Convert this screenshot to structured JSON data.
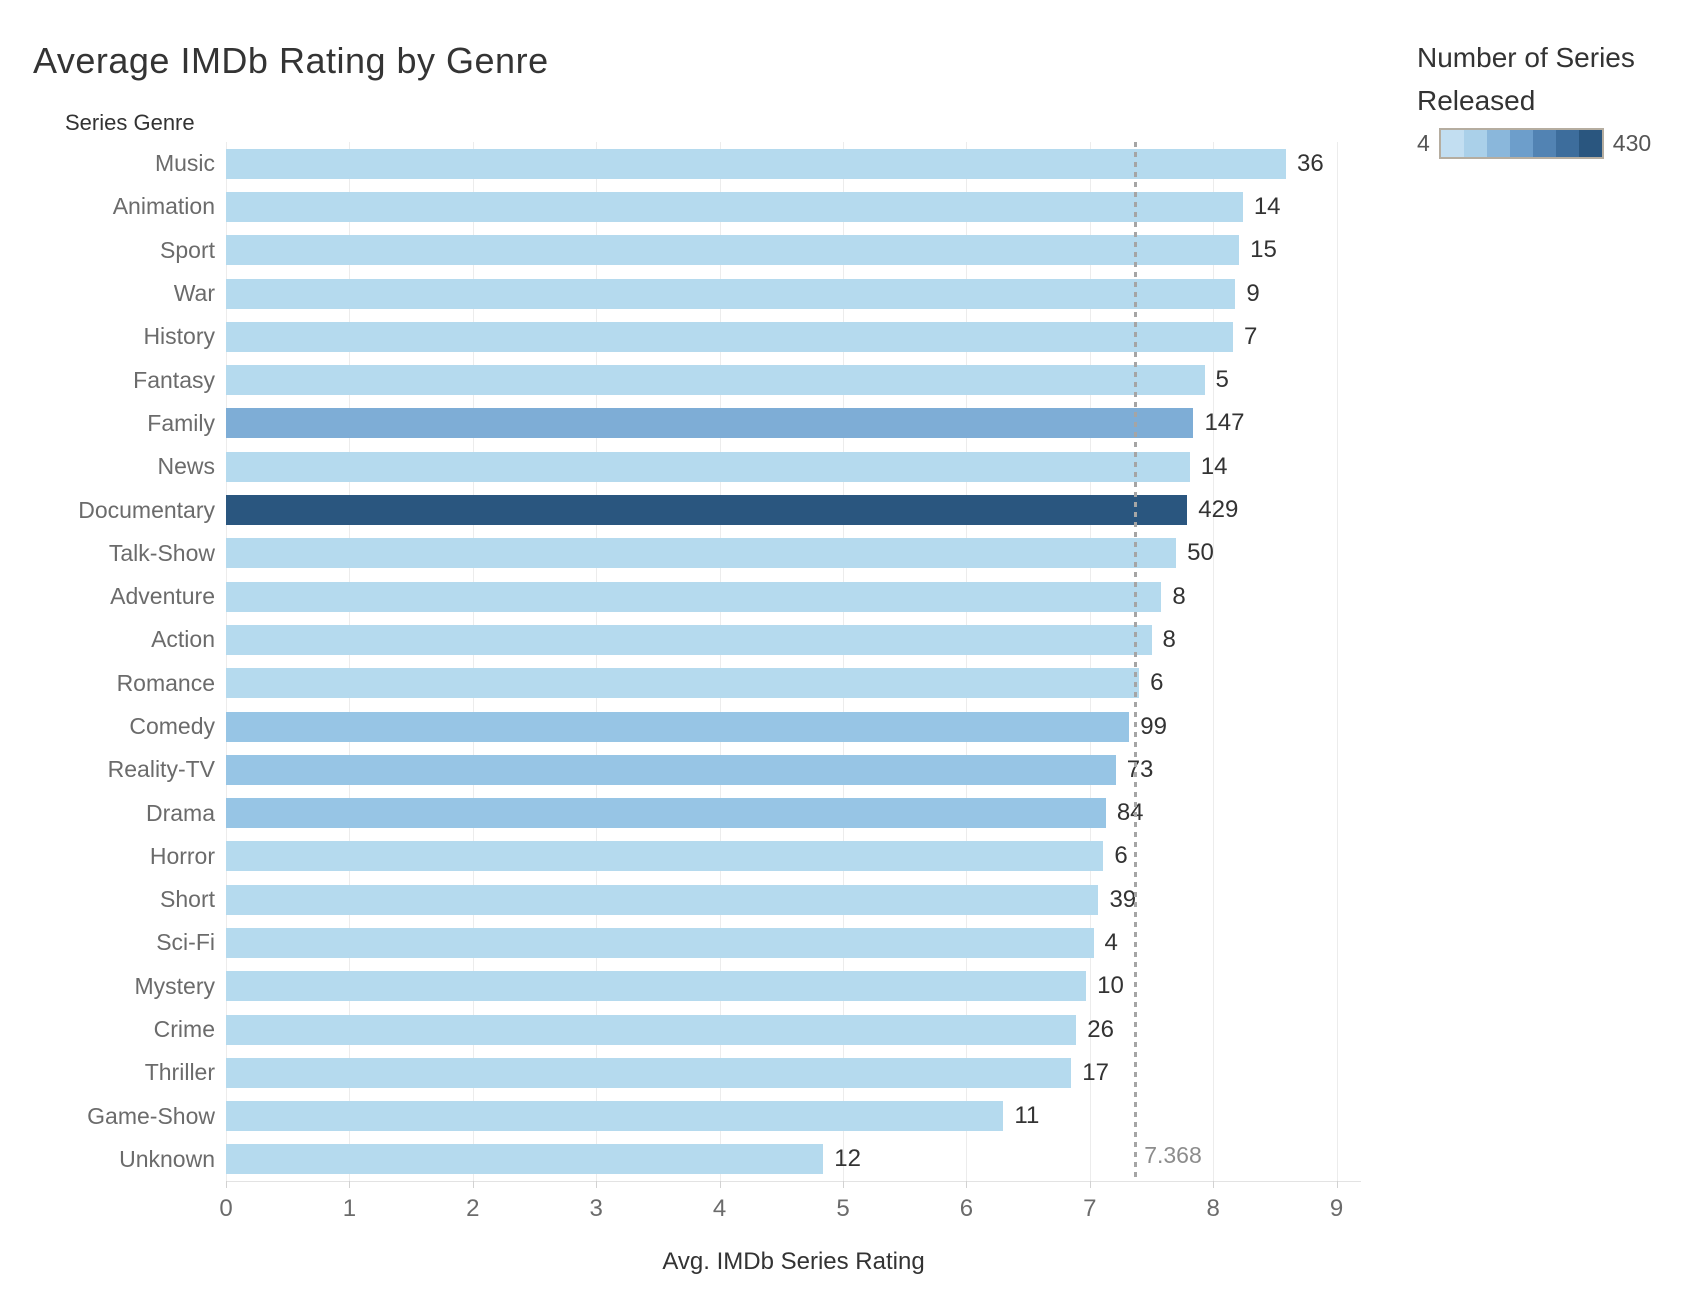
{
  "title": "Average IMDb Rating by Genre",
  "row_header": "Series Genre",
  "legend": {
    "title_line1": "Number of Series",
    "title_line2": "Released",
    "min_label": "4",
    "max_label": "430",
    "ramp_colors": [
      "#c2def1",
      "#aad0e9",
      "#8ab7db",
      "#6d9ecb",
      "#5283b3",
      "#3d6d9c",
      "#2a567f"
    ]
  },
  "colors": {
    "bar_light": "#b5daee",
    "bar_medium_light": "#97c5e5",
    "bar_medium": "#7eadd6",
    "bar_dark": "#2a567f",
    "gridline": "#ececec",
    "reference_line": "#a5a5a5"
  },
  "chart_data": {
    "type": "bar",
    "orientation": "horizontal",
    "title": "Average IMDb Rating by Genre",
    "xlabel": "Avg. IMDb Series Rating",
    "ylabel": "Series Genre",
    "xlim": [
      0,
      9.25
    ],
    "x_ticks": [
      0,
      1,
      2,
      3,
      4,
      5,
      6,
      7,
      8,
      9
    ],
    "grid": true,
    "legend_position": "top-right",
    "color_field": "Number of Series Released",
    "color_domain": [
      4,
      430
    ],
    "reference_line": {
      "value": 7.368,
      "label": "7.368"
    },
    "rows": [
      {
        "genre": "Music",
        "rating": 8.59,
        "count": 36,
        "color": "#b5daee"
      },
      {
        "genre": "Animation",
        "rating": 8.24,
        "count": 14,
        "color": "#b5daee"
      },
      {
        "genre": "Sport",
        "rating": 8.21,
        "count": 15,
        "color": "#b5daee"
      },
      {
        "genre": "War",
        "rating": 8.18,
        "count": 9,
        "color": "#b5daee"
      },
      {
        "genre": "History",
        "rating": 8.16,
        "count": 7,
        "color": "#b5daee"
      },
      {
        "genre": "Fantasy",
        "rating": 7.93,
        "count": 5,
        "color": "#b5daee"
      },
      {
        "genre": "Family",
        "rating": 7.84,
        "count": 147,
        "color": "#7eadd6"
      },
      {
        "genre": "News",
        "rating": 7.81,
        "count": 14,
        "color": "#b5daee"
      },
      {
        "genre": "Documentary",
        "rating": 7.79,
        "count": 429,
        "color": "#2a567f"
      },
      {
        "genre": "Talk-Show",
        "rating": 7.7,
        "count": 50,
        "color": "#b5daee"
      },
      {
        "genre": "Adventure",
        "rating": 7.58,
        "count": 8,
        "color": "#b5daee"
      },
      {
        "genre": "Action",
        "rating": 7.5,
        "count": 8,
        "color": "#b5daee"
      },
      {
        "genre": "Romance",
        "rating": 7.4,
        "count": 6,
        "color": "#b5daee"
      },
      {
        "genre": "Comedy",
        "rating": 7.32,
        "count": 99,
        "color": "#97c5e5"
      },
      {
        "genre": "Reality-TV",
        "rating": 7.21,
        "count": 73,
        "color": "#97c5e5"
      },
      {
        "genre": "Drama",
        "rating": 7.13,
        "count": 84,
        "color": "#97c5e5"
      },
      {
        "genre": "Horror",
        "rating": 7.11,
        "count": 6,
        "color": "#b5daee"
      },
      {
        "genre": "Short",
        "rating": 7.07,
        "count": 39,
        "color": "#b5daee"
      },
      {
        "genre": "Sci-Fi",
        "rating": 7.03,
        "count": 4,
        "color": "#b5daee"
      },
      {
        "genre": "Mystery",
        "rating": 6.97,
        "count": 10,
        "color": "#b5daee"
      },
      {
        "genre": "Crime",
        "rating": 6.89,
        "count": 26,
        "color": "#b5daee"
      },
      {
        "genre": "Thriller",
        "rating": 6.85,
        "count": 17,
        "color": "#b5daee"
      },
      {
        "genre": "Game-Show",
        "rating": 6.3,
        "count": 11,
        "color": "#b5daee"
      },
      {
        "genre": "Unknown",
        "rating": 4.84,
        "count": 12,
        "color": "#b5daee"
      }
    ]
  }
}
